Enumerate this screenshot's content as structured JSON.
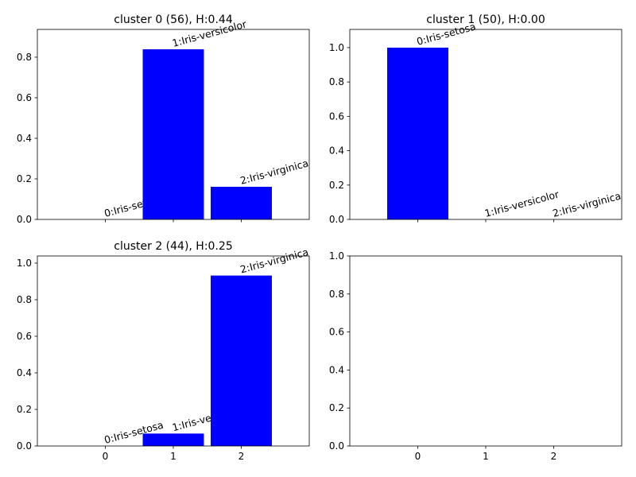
{
  "chart_data": [
    {
      "type": "bar",
      "title": "cluster 0 (56), H:0.44",
      "x": [
        0,
        1,
        2
      ],
      "values": [
        0,
        0.839,
        0.161
      ],
      "labels": [
        "0:Iris-setosa",
        "1:Iris-versicolor",
        "2:Iris-virginica"
      ],
      "color": "#0000ff",
      "xlim": [
        -1,
        3
      ],
      "xticks": [
        0,
        1,
        2
      ],
      "ylim": [
        0,
        0.937
      ],
      "yticks": [
        {
          "value": 0,
          "label": "0.0"
        },
        0.2,
        0.4,
        0.6,
        0.8
      ]
    },
    {
      "type": "bar",
      "title": "cluster 1 (50), H:0.00",
      "x": [
        0,
        1,
        2
      ],
      "values": [
        1.0,
        0,
        0
      ],
      "labels": [
        "0:Iris-setosa",
        "1:Iris-versicolor",
        "2:Iris-virginica"
      ],
      "color": "#0000ff",
      "xlim": [
        -1,
        3
      ],
      "xticks": [
        0,
        1,
        2
      ],
      "ylim": [
        0,
        1.106
      ],
      "yticks": [
        {
          "value": 0,
          "label": "0.0"
        },
        0.2,
        0.4,
        0.6,
        0.8,
        {
          "value": 1,
          "label": "1.0"
        }
      ]
    },
    {
      "type": "bar",
      "title": "cluster 2 (44), H:0.25",
      "x": [
        0,
        1,
        2
      ],
      "values": [
        0,
        0.068,
        0.932
      ],
      "labels": [
        "0:Iris-setosa",
        "1:Iris-versicolor",
        "2:Iris-virginica"
      ],
      "color": "#0000ff",
      "xlim": [
        -1,
        3
      ],
      "xticks": [
        0,
        1,
        2
      ],
      "ylim": [
        0,
        1.039
      ],
      "yticks": [
        {
          "value": 0,
          "label": "0.0"
        },
        0.2,
        0.4,
        0.6,
        0.8,
        {
          "value": 1,
          "label": "1.0"
        }
      ]
    },
    {
      "type": "bar",
      "xlim": [
        -1,
        3
      ],
      "xticks": [
        0,
        1,
        2
      ],
      "ylim": [
        0,
        1
      ],
      "yticks": [
        {
          "value": 0,
          "label": "0.0"
        },
        0.2,
        0.4,
        0.6,
        0.8,
        {
          "value": 1,
          "label": "1.0"
        }
      ]
    }
  ]
}
